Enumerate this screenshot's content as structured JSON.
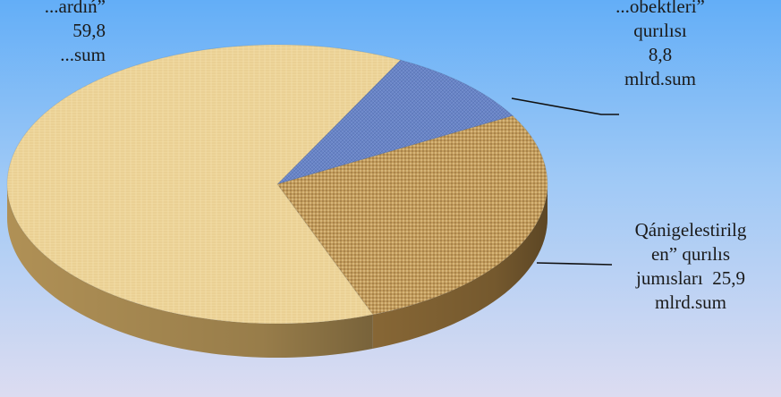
{
  "chart_data": {
    "type": "pie",
    "style": "3d",
    "slices": [
      {
        "label": [
          "...ardıń”",
          "59,8",
          "...sum"
        ],
        "value": 59.8,
        "unit": "mlrd.sum",
        "color": "#efd79c"
      },
      {
        "label": [
          "...obektleri”",
          "qurılısı",
          "8,8",
          "mlrd.sum"
        ],
        "value": 8.8,
        "unit": "mlrd.sum",
        "color": "#6a86c8"
      },
      {
        "label": [
          "Qánigelestirilg",
          "en” qurılıs",
          "jumısları  25,9",
          "mlrd.sum"
        ],
        "value": 25.9,
        "unit": "mlrd.sum",
        "color": "#c29c5c"
      }
    ]
  }
}
